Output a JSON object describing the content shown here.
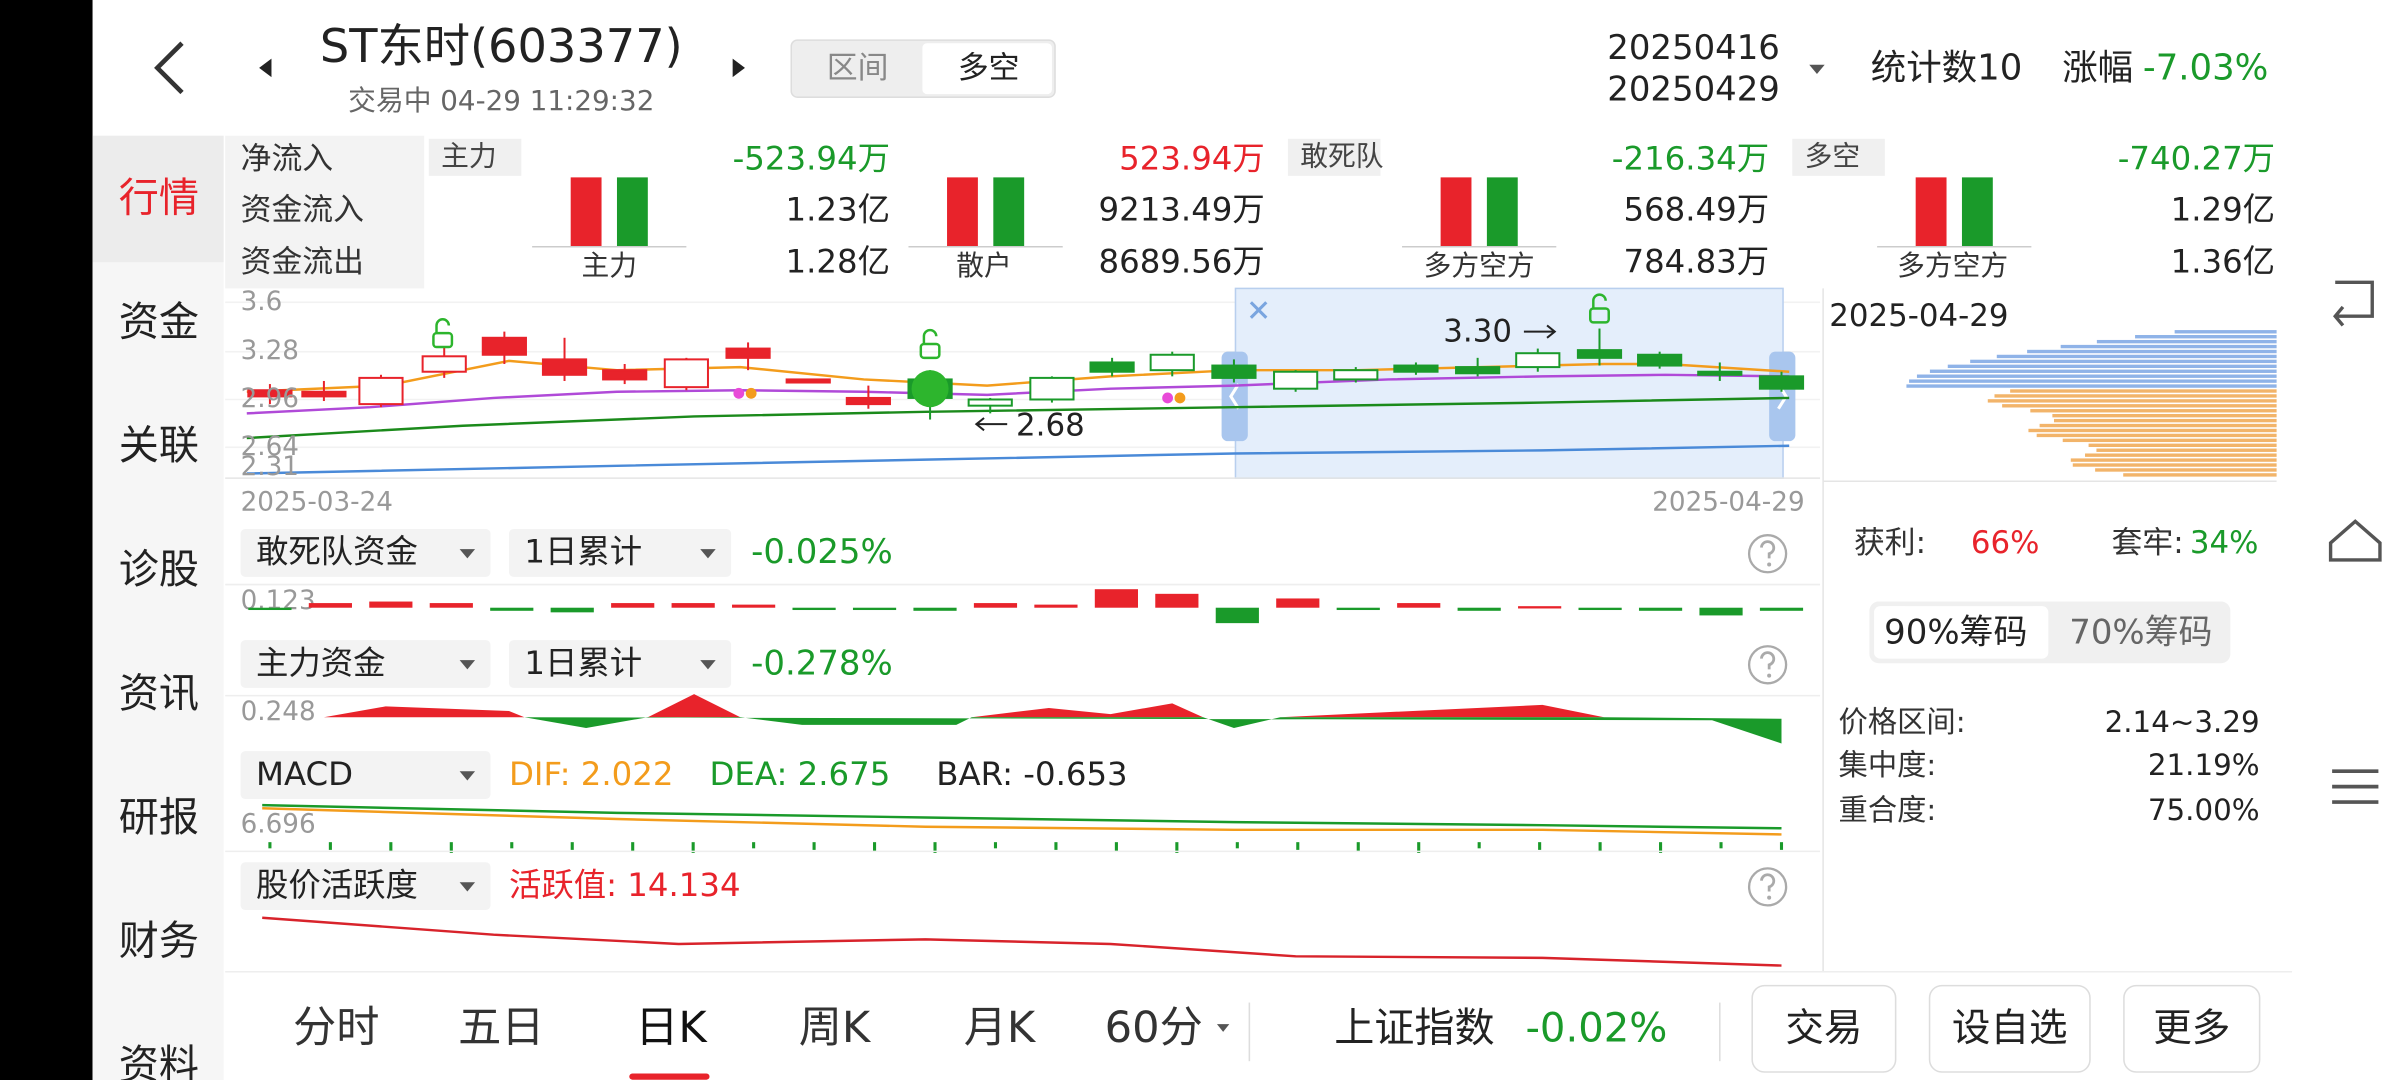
{
  "header": {
    "title": "ST东时(603377)",
    "status": "交易中 04-29 11:29:32",
    "segments": [
      "区间",
      "多空"
    ],
    "date_start": "20250416",
    "date_end": "20250429",
    "count": "统计数10",
    "change_label": "涨幅",
    "change": "-7.03%"
  },
  "sidebar": [
    "行情",
    "资金",
    "关联",
    "诊股",
    "资讯",
    "研报",
    "财务",
    "资料"
  ],
  "fund_flow": {
    "row_labels": [
      "净流入",
      "资金流入",
      "资金流出"
    ],
    "panels": [
      {
        "label": "主力",
        "values": [
          "-523.94万",
          "1.23亿",
          "1.28亿"
        ],
        "bar_label": "主力"
      },
      {
        "values": [
          "523.94万",
          "9213.49万",
          "8689.56万"
        ],
        "bar_label": "散户"
      },
      {
        "label": "敢死队",
        "values": [
          "-216.34万",
          "568.49万",
          "784.83万"
        ],
        "bar_label": "多方空方"
      },
      {
        "label": "多空",
        "values": [
          "-740.27万",
          "1.29亿",
          "1.36亿"
        ],
        "bar_label": "多方空方"
      }
    ]
  },
  "kline": {
    "price_labels": [
      "3.6",
      "3.28",
      "2.96",
      "2.64",
      "2.31"
    ],
    "start_date": "2025-03-24",
    "end_date": "2025-04-29",
    "high_note": "3.30",
    "low_note": "2.68",
    "chip_date": "2025-04-29"
  },
  "indicators": [
    {
      "name": "敢死队资金",
      "period": "1日累计",
      "value": "-0.025%",
      "scale": "0.123"
    },
    {
      "name": "主力资金",
      "period": "1日累计",
      "value": "-0.278%",
      "scale": "0.248"
    }
  ],
  "macd": {
    "name": "MACD",
    "dif": "DIF: 2.022",
    "dea": "DEA: 2.675",
    "bar": "BAR: -0.653",
    "scale": "6.696"
  },
  "activity": {
    "name": "股价活跃度",
    "value": "活跃值: 14.134"
  },
  "chips": {
    "profit_label": "获利:",
    "profit": "66%",
    "trapped_label": "套牢:",
    "trapped": "34%",
    "tabs": [
      "90%筹码",
      "70%筹码"
    ],
    "stats": [
      {
        "label": "价格区间:",
        "value": "2.14~3.29"
      },
      {
        "label": "集中度:",
        "value": "21.19%"
      },
      {
        "label": "重合度:",
        "value": "75.00%"
      }
    ]
  },
  "bottom": {
    "tabs": [
      "分时",
      "五日",
      "日K",
      "周K",
      "月K",
      "60分"
    ],
    "index_name": "上证指数",
    "index_change": "-0.02%",
    "buttons": [
      "交易",
      "设自选",
      "更多"
    ]
  }
}
